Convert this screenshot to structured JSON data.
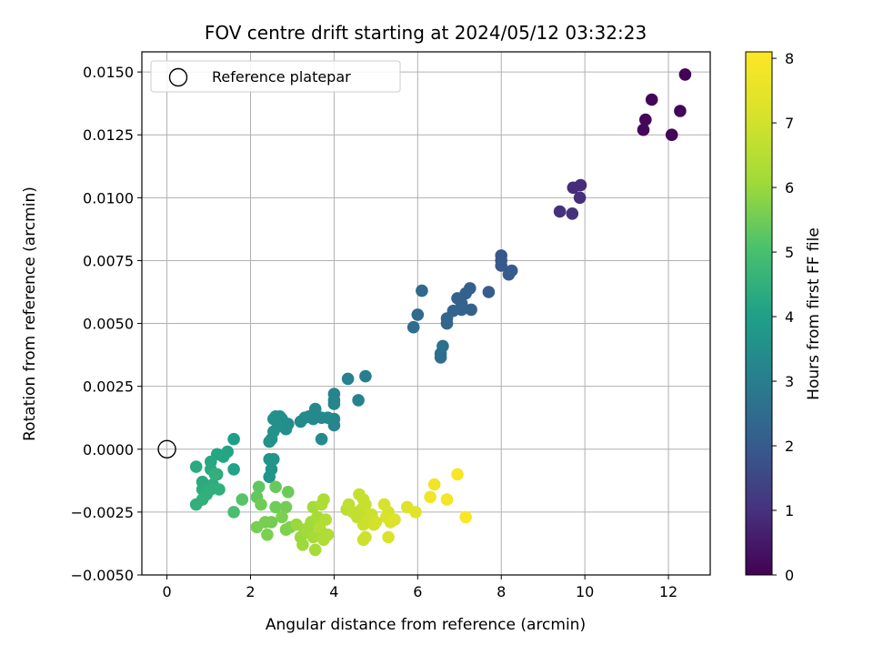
{
  "chart_data": {
    "type": "scatter",
    "title": "FOV centre drift starting at 2024/05/12 03:32:23",
    "xlabel": "Angular distance from reference (arcmin)",
    "ylabel": "Rotation from reference (arcmin)",
    "xlim": [
      -0.6,
      13.0
    ],
    "ylim": [
      -0.005,
      0.0158
    ],
    "xticks": [
      0,
      2,
      4,
      6,
      8,
      10,
      12
    ],
    "xtick_labels": [
      "0",
      "2",
      "4",
      "6",
      "8",
      "10",
      "12"
    ],
    "yticks": [
      -0.005,
      -0.0025,
      0.0,
      0.0025,
      0.005,
      0.0075,
      0.01,
      0.0125,
      0.015
    ],
    "ytick_labels": [
      "−0.0050",
      "−0.0025",
      "0.0000",
      "0.0025",
      "0.0050",
      "0.0075",
      "0.0100",
      "0.0125",
      "0.0150"
    ],
    "grid": true,
    "legend": {
      "placement": "top-left",
      "entries": [
        "Reference platepar"
      ]
    },
    "reference_point": {
      "x": 0,
      "y": 0,
      "marker": "open-circle"
    },
    "colorbar": {
      "label": "Hours from first FF file",
      "colormap": "viridis",
      "range": [
        0,
        8.1
      ],
      "ticks": [
        0,
        1,
        2,
        3,
        4,
        5,
        6,
        7,
        8
      ],
      "tick_labels": [
        "0",
        "1",
        "2",
        "3",
        "4",
        "5",
        "6",
        "7",
        "8"
      ]
    },
    "points": [
      [
        12.4,
        0.0149,
        0.05
      ],
      [
        11.6,
        0.0139,
        0.1
      ],
      [
        11.45,
        0.0131,
        0.12
      ],
      [
        11.4,
        0.0127,
        0.15
      ],
      [
        12.28,
        0.01345,
        0.1
      ],
      [
        12.08,
        0.0125,
        0.1
      ],
      [
        9.9,
        0.0105,
        0.9
      ],
      [
        9.72,
        0.0104,
        0.9
      ],
      [
        9.88,
        0.01,
        0.95
      ],
      [
        9.4,
        0.00945,
        1.0
      ],
      [
        9.7,
        0.00937,
        1.0
      ],
      [
        8.0,
        0.0077,
        1.9
      ],
      [
        8.0,
        0.0075,
        1.9
      ],
      [
        8.0,
        0.0073,
        1.95
      ],
      [
        8.25,
        0.0071,
        2.0
      ],
      [
        8.18,
        0.00695,
        2.0
      ],
      [
        7.7,
        0.00625,
        2.05
      ],
      [
        7.25,
        0.0064,
        2.15
      ],
      [
        7.15,
        0.0062,
        2.15
      ],
      [
        6.95,
        0.006,
        2.2
      ],
      [
        7.05,
        0.0058,
        2.2
      ],
      [
        7.28,
        0.00555,
        2.2
      ],
      [
        7.05,
        0.00555,
        2.25
      ],
      [
        6.85,
        0.0055,
        2.25
      ],
      [
        6.7,
        0.0052,
        2.3
      ],
      [
        6.7,
        0.005,
        2.3
      ],
      [
        6.1,
        0.0063,
        2.4
      ],
      [
        6.0,
        0.00535,
        2.45
      ],
      [
        5.9,
        0.00485,
        2.5
      ],
      [
        6.6,
        0.0041,
        2.6
      ],
      [
        6.55,
        0.0038,
        2.6
      ],
      [
        6.55,
        0.00365,
        2.6
      ],
      [
        4.75,
        0.0029,
        3.05
      ],
      [
        4.33,
        0.0028,
        3.1
      ],
      [
        4.58,
        0.00195,
        3.15
      ],
      [
        4.0,
        0.0022,
        3.2
      ],
      [
        4.0,
        0.00195,
        3.2
      ],
      [
        4.0,
        0.0018,
        3.2
      ],
      [
        4.0,
        0.0012,
        3.25
      ],
      [
        4.0,
        0.00095,
        3.25
      ],
      [
        3.85,
        0.00125,
        3.3
      ],
      [
        3.7,
        0.00125,
        3.3
      ],
      [
        3.55,
        0.0016,
        3.35
      ],
      [
        3.5,
        0.0012,
        3.35
      ],
      [
        3.4,
        0.0013,
        3.35
      ],
      [
        3.3,
        0.00125,
        3.4
      ],
      [
        3.2,
        0.0011,
        3.4
      ],
      [
        3.7,
        0.0004,
        3.4
      ],
      [
        2.9,
        0.001,
        3.45
      ],
      [
        2.85,
        0.0008,
        3.5
      ],
      [
        2.75,
        0.0012,
        3.5
      ],
      [
        2.7,
        0.0013,
        3.5
      ],
      [
        2.6,
        0.0013,
        3.5
      ],
      [
        2.55,
        0.0012,
        3.55
      ],
      [
        2.65,
        0.0009,
        3.55
      ],
      [
        2.55,
        0.0007,
        3.6
      ],
      [
        2.5,
        0.0004,
        3.6
      ],
      [
        2.45,
        0.0003,
        3.6
      ],
      [
        2.55,
        -0.0004,
        3.65
      ],
      [
        2.45,
        -0.0004,
        3.65
      ],
      [
        2.5,
        -0.0008,
        3.7
      ],
      [
        2.45,
        -0.0011,
        3.7
      ],
      [
        1.6,
        0.0004,
        4.0
      ],
      [
        1.6,
        -0.0008,
        4.1
      ],
      [
        1.45,
        -0.0001,
        4.15
      ],
      [
        1.35,
        -0.0003,
        4.2
      ],
      [
        1.2,
        -0.0002,
        4.2
      ],
      [
        1.05,
        -0.0005,
        4.25
      ],
      [
        1.2,
        -0.001,
        4.25
      ],
      [
        1.05,
        -0.0008,
        4.3
      ],
      [
        0.85,
        -0.0013,
        4.35
      ],
      [
        0.7,
        -0.0007,
        4.35
      ],
      [
        1.1,
        -0.0014,
        4.4
      ],
      [
        0.85,
        -0.0016,
        4.4
      ],
      [
        1.05,
        -0.0016,
        4.45
      ],
      [
        0.95,
        -0.0018,
        4.45
      ],
      [
        0.85,
        -0.002,
        4.5
      ],
      [
        0.7,
        -0.0022,
        4.5
      ],
      [
        1.25,
        -0.0016,
        4.5
      ],
      [
        1.15,
        -0.001,
        4.5
      ],
      [
        1.6,
        -0.0025,
        5.0
      ],
      [
        1.8,
        -0.002,
        5.2
      ],
      [
        2.2,
        -0.0015,
        5.3
      ],
      [
        2.15,
        -0.0019,
        5.35
      ],
      [
        2.6,
        -0.0015,
        5.4
      ],
      [
        2.9,
        -0.0017,
        5.45
      ],
      [
        2.25,
        -0.0022,
        5.5
      ],
      [
        2.6,
        -0.0023,
        5.5
      ],
      [
        2.85,
        -0.0023,
        5.55
      ],
      [
        2.5,
        -0.0029,
        5.55
      ],
      [
        2.35,
        -0.0029,
        5.6
      ],
      [
        2.15,
        -0.0031,
        5.6
      ],
      [
        2.4,
        -0.0034,
        5.65
      ],
      [
        2.75,
        -0.0027,
        5.65
      ],
      [
        2.85,
        -0.0032,
        5.7
      ],
      [
        2.95,
        -0.0031,
        5.7
      ],
      [
        3.1,
        -0.003,
        6.0
      ],
      [
        3.2,
        -0.0035,
        6.0
      ],
      [
        3.25,
        -0.0038,
        6.05
      ],
      [
        3.3,
        -0.0032,
        6.05
      ],
      [
        3.4,
        -0.0031,
        6.1
      ],
      [
        3.35,
        -0.0033,
        6.1
      ],
      [
        3.45,
        -0.0029,
        6.1
      ],
      [
        3.5,
        -0.0023,
        6.15
      ],
      [
        3.5,
        -0.0035,
        6.2
      ],
      [
        3.55,
        -0.004,
        6.2
      ],
      [
        3.6,
        -0.0027,
        6.25
      ],
      [
        3.7,
        -0.0033,
        6.25
      ],
      [
        3.75,
        -0.002,
        6.3
      ],
      [
        3.7,
        -0.0022,
        6.3
      ],
      [
        3.75,
        -0.0036,
        6.35
      ],
      [
        3.85,
        -0.0034,
        6.35
      ],
      [
        3.8,
        -0.0028,
        6.4
      ],
      [
        3.65,
        -0.0031,
        6.4
      ],
      [
        4.3,
        -0.0024,
        6.6
      ],
      [
        4.35,
        -0.0022,
        6.65
      ],
      [
        4.45,
        -0.0025,
        6.7
      ],
      [
        4.55,
        -0.0027,
        6.7
      ],
      [
        4.6,
        -0.0018,
        6.75
      ],
      [
        4.65,
        -0.0024,
        6.75
      ],
      [
        4.7,
        -0.002,
        6.8
      ],
      [
        4.75,
        -0.0022,
        6.8
      ],
      [
        4.7,
        -0.003,
        6.85
      ],
      [
        4.8,
        -0.0028,
        6.85
      ],
      [
        4.7,
        -0.0036,
        6.9
      ],
      [
        4.75,
        -0.0035,
        6.9
      ],
      [
        4.9,
        -0.0026,
        6.9
      ],
      [
        4.95,
        -0.003,
        7.0
      ],
      [
        5.0,
        -0.0029,
        7.0
      ],
      [
        5.2,
        -0.0022,
        7.1
      ],
      [
        5.3,
        -0.0025,
        7.1
      ],
      [
        5.25,
        -0.0027,
        7.15
      ],
      [
        5.35,
        -0.0029,
        7.2
      ],
      [
        5.3,
        -0.0035,
        7.2
      ],
      [
        5.45,
        -0.0028,
        7.25
      ],
      [
        5.75,
        -0.0023,
        7.3
      ],
      [
        5.95,
        -0.0025,
        7.35
      ],
      [
        6.4,
        -0.0014,
        7.7
      ],
      [
        6.3,
        -0.0019,
        7.75
      ],
      [
        6.7,
        -0.002,
        7.85
      ],
      [
        6.95,
        -0.001,
        7.95
      ],
      [
        7.15,
        -0.0027,
        8.0
      ]
    ]
  }
}
